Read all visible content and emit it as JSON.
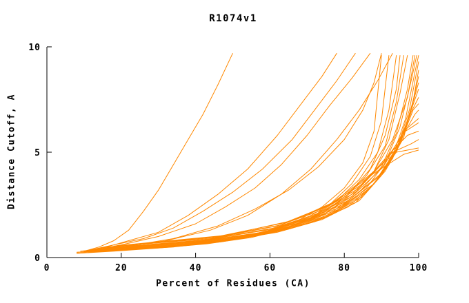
{
  "page": {
    "background": "#ffffff"
  },
  "chart_data": {
    "type": "line",
    "title": "R1074v1",
    "xlabel": "Percent of Residues (CA)",
    "ylabel": "Distance Cutoff, A",
    "xlim": [
      0,
      100
    ],
    "ylim": [
      0,
      10
    ],
    "x_ticks": [
      0,
      20,
      40,
      60,
      80,
      100
    ],
    "y_ticks": [
      0,
      5,
      10
    ],
    "grid": false,
    "legend": "none",
    "line_color": "#ff8800",
    "axis_color": "#000000",
    "series": [
      [
        [
          10,
          0.3
        ],
        [
          14,
          0.5
        ],
        [
          18,
          0.8
        ],
        [
          22,
          1.3
        ],
        [
          26,
          2.2
        ],
        [
          30,
          3.2
        ],
        [
          34,
          4.4
        ],
        [
          38,
          5.6
        ],
        [
          42,
          6.8
        ],
        [
          46,
          8.2
        ],
        [
          50,
          9.7
        ]
      ],
      [
        [
          10,
          0.3
        ],
        [
          16,
          0.5
        ],
        [
          22,
          0.8
        ],
        [
          30,
          1.2
        ],
        [
          38,
          2.0
        ],
        [
          46,
          3.0
        ],
        [
          54,
          4.2
        ],
        [
          62,
          5.8
        ],
        [
          68,
          7.2
        ],
        [
          74,
          8.6
        ],
        [
          78,
          9.7
        ]
      ],
      [
        [
          10,
          0.3
        ],
        [
          18,
          0.6
        ],
        [
          26,
          0.9
        ],
        [
          34,
          1.4
        ],
        [
          42,
          2.2
        ],
        [
          50,
          3.1
        ],
        [
          58,
          4.2
        ],
        [
          66,
          5.6
        ],
        [
          72,
          7.0
        ],
        [
          78,
          8.4
        ],
        [
          83,
          9.7
        ]
      ],
      [
        [
          11,
          0.3
        ],
        [
          20,
          0.6
        ],
        [
          30,
          1.0
        ],
        [
          40,
          1.6
        ],
        [
          48,
          2.4
        ],
        [
          56,
          3.3
        ],
        [
          63,
          4.4
        ],
        [
          70,
          5.8
        ],
        [
          76,
          7.2
        ],
        [
          82,
          8.5
        ],
        [
          87,
          9.7
        ]
      ],
      [
        [
          10,
          0.3
        ],
        [
          22,
          0.55
        ],
        [
          34,
          0.9
        ],
        [
          46,
          1.5
        ],
        [
          56,
          2.3
        ],
        [
          65,
          3.2
        ],
        [
          73,
          4.3
        ],
        [
          80,
          5.6
        ],
        [
          85,
          7.0
        ],
        [
          88,
          8.3
        ],
        [
          90,
          9.7
        ]
      ],
      [
        [
          9,
          0.3
        ],
        [
          20,
          0.5
        ],
        [
          32,
          0.8
        ],
        [
          44,
          1.3
        ],
        [
          54,
          2.0
        ],
        [
          63,
          3.0
        ],
        [
          71,
          4.2
        ],
        [
          78,
          5.6
        ],
        [
          84,
          7.0
        ],
        [
          89,
          8.4
        ],
        [
          93,
          9.7
        ]
      ],
      [
        [
          8,
          0.2
        ],
        [
          20,
          0.35
        ],
        [
          34,
          0.5
        ],
        [
          47,
          0.75
        ],
        [
          57,
          1.05
        ],
        [
          66,
          1.5
        ],
        [
          74,
          2.1
        ],
        [
          81,
          3.0
        ],
        [
          87,
          4.2
        ],
        [
          91,
          5.8
        ],
        [
          94,
          8.0
        ],
        [
          95,
          9.6
        ]
      ],
      [
        [
          8,
          0.2
        ],
        [
          18,
          0.3
        ],
        [
          30,
          0.45
        ],
        [
          43,
          0.65
        ],
        [
          55,
          0.95
        ],
        [
          65,
          1.4
        ],
        [
          74,
          2.0
        ],
        [
          82,
          2.9
        ],
        [
          88,
          4.1
        ],
        [
          93,
          5.6
        ],
        [
          97,
          7.6
        ],
        [
          99,
          9.6
        ]
      ],
      [
        [
          8,
          0.25
        ],
        [
          22,
          0.4
        ],
        [
          36,
          0.6
        ],
        [
          48,
          0.85
        ],
        [
          58,
          1.2
        ],
        [
          67,
          1.7
        ],
        [
          74,
          2.4
        ],
        [
          80,
          3.3
        ],
        [
          85,
          4.5
        ],
        [
          88,
          6.0
        ],
        [
          90,
          9.6
        ]
      ],
      [
        [
          8,
          0.25
        ],
        [
          24,
          0.4
        ],
        [
          38,
          0.6
        ],
        [
          50,
          0.9
        ],
        [
          60,
          1.3
        ],
        [
          69,
          1.8
        ],
        [
          76,
          2.5
        ],
        [
          82,
          3.5
        ],
        [
          87,
          4.8
        ],
        [
          90,
          6.5
        ],
        [
          92,
          9.6
        ]
      ],
      [
        [
          9,
          0.25
        ],
        [
          25,
          0.4
        ],
        [
          40,
          0.65
        ],
        [
          52,
          0.95
        ],
        [
          62,
          1.35
        ],
        [
          71,
          1.9
        ],
        [
          78,
          2.7
        ],
        [
          84,
          3.7
        ],
        [
          89,
          5.0
        ],
        [
          92,
          7.0
        ],
        [
          94,
          9.6
        ]
      ],
      [
        [
          9,
          0.3
        ],
        [
          26,
          0.45
        ],
        [
          42,
          0.7
        ],
        [
          54,
          1.0
        ],
        [
          64,
          1.4
        ],
        [
          73,
          2.0
        ],
        [
          80,
          2.8
        ],
        [
          86,
          3.9
        ],
        [
          91,
          5.3
        ],
        [
          94,
          7.4
        ],
        [
          96,
          9.6
        ]
      ],
      [
        [
          10,
          0.3
        ],
        [
          28,
          0.45
        ],
        [
          44,
          0.7
        ],
        [
          56,
          1.05
        ],
        [
          66,
          1.5
        ],
        [
          75,
          2.1
        ],
        [
          82,
          3.0
        ],
        [
          88,
          4.1
        ],
        [
          92,
          5.6
        ],
        [
          95,
          7.8
        ],
        [
          97,
          9.6
        ]
      ],
      [
        [
          10,
          0.3
        ],
        [
          30,
          0.5
        ],
        [
          46,
          0.75
        ],
        [
          58,
          1.1
        ],
        [
          68,
          1.55
        ],
        [
          77,
          2.2
        ],
        [
          84,
          3.1
        ],
        [
          90,
          4.3
        ],
        [
          94,
          5.9
        ],
        [
          97,
          8.0
        ],
        [
          98.5,
          9.6
        ]
      ],
      [
        [
          10,
          0.3
        ],
        [
          32,
          0.5
        ],
        [
          48,
          0.8
        ],
        [
          60,
          1.15
        ],
        [
          70,
          1.6
        ],
        [
          79,
          2.3
        ],
        [
          86,
          3.3
        ],
        [
          91,
          4.5
        ],
        [
          95,
          6.2
        ],
        [
          98,
          8.4
        ],
        [
          99.5,
          9.6
        ]
      ],
      [
        [
          11,
          0.3
        ],
        [
          33,
          0.55
        ],
        [
          50,
          0.85
        ],
        [
          62,
          1.2
        ],
        [
          72,
          1.7
        ],
        [
          81,
          2.4
        ],
        [
          88,
          3.5
        ],
        [
          93,
          4.8
        ],
        [
          96.5,
          6.6
        ],
        [
          99,
          8.8
        ],
        [
          100,
          9.6
        ]
      ],
      [
        [
          11,
          0.3
        ],
        [
          34,
          0.55
        ],
        [
          52,
          0.9
        ],
        [
          64,
          1.3
        ],
        [
          74,
          1.8
        ],
        [
          83,
          2.6
        ],
        [
          89,
          3.7
        ],
        [
          94,
          5.1
        ],
        [
          97.5,
          7.0
        ],
        [
          100,
          9.3
        ]
      ],
      [
        [
          12,
          0.3
        ],
        [
          35,
          0.6
        ],
        [
          53,
          0.95
        ],
        [
          65,
          1.35
        ],
        [
          75,
          1.9
        ],
        [
          84,
          2.7
        ],
        [
          90,
          3.9
        ],
        [
          95,
          5.4
        ],
        [
          98.5,
          7.4
        ],
        [
          100,
          8.9
        ]
      ],
      [
        [
          12,
          0.35
        ],
        [
          36,
          0.6
        ],
        [
          54,
          1.0
        ],
        [
          66,
          1.4
        ],
        [
          76,
          2.0
        ],
        [
          85,
          2.9
        ],
        [
          91,
          4.1
        ],
        [
          96,
          5.7
        ],
        [
          99,
          7.8
        ],
        [
          100,
          8.6
        ]
      ],
      [
        [
          13,
          0.35
        ],
        [
          37,
          0.65
        ],
        [
          55,
          1.05
        ],
        [
          67,
          1.5
        ],
        [
          77,
          2.1
        ],
        [
          86,
          3.1
        ],
        [
          92,
          4.4
        ],
        [
          96.5,
          6.1
        ],
        [
          99.5,
          8.0
        ],
        [
          100,
          8.3
        ]
      ],
      [
        [
          13,
          0.35
        ],
        [
          38,
          0.7
        ],
        [
          56,
          1.1
        ],
        [
          68,
          1.6
        ],
        [
          78,
          2.25
        ],
        [
          87,
          3.3
        ],
        [
          93,
          4.7
        ],
        [
          97,
          6.5
        ],
        [
          100,
          8.0
        ]
      ],
      [
        [
          14,
          0.4
        ],
        [
          39,
          0.7
        ],
        [
          57,
          1.15
        ],
        [
          69,
          1.7
        ],
        [
          79,
          2.4
        ],
        [
          88,
          3.5
        ],
        [
          94,
          5.0
        ],
        [
          98,
          6.9
        ],
        [
          100,
          7.6
        ]
      ],
      [
        [
          14,
          0.4
        ],
        [
          40,
          0.75
        ],
        [
          58,
          1.2
        ],
        [
          70,
          1.8
        ],
        [
          80,
          2.55
        ],
        [
          89,
          3.8
        ],
        [
          95,
          5.4
        ],
        [
          98.5,
          7.0
        ],
        [
          100,
          7.3
        ]
      ],
      [
        [
          15,
          0.4
        ],
        [
          41,
          0.8
        ],
        [
          59,
          1.3
        ],
        [
          71,
          1.9
        ],
        [
          81,
          2.7
        ],
        [
          90,
          4.0
        ],
        [
          95.5,
          5.7
        ],
        [
          99,
          6.8
        ],
        [
          100,
          7.0
        ]
      ],
      [
        [
          15,
          0.45
        ],
        [
          42,
          0.8
        ],
        [
          60,
          1.35
        ],
        [
          72,
          2.0
        ],
        [
          82,
          2.9
        ],
        [
          90.5,
          4.3
        ],
        [
          96,
          6.0
        ],
        [
          100,
          6.6
        ]
      ],
      [
        [
          16,
          0.45
        ],
        [
          43,
          0.85
        ],
        [
          61,
          1.4
        ],
        [
          73,
          2.1
        ],
        [
          83,
          3.1
        ],
        [
          91,
          4.6
        ],
        [
          96.5,
          6.0
        ],
        [
          100,
          6.4
        ]
      ],
      [
        [
          16,
          0.5
        ],
        [
          44,
          0.9
        ],
        [
          62,
          1.5
        ],
        [
          74,
          2.25
        ],
        [
          84,
          3.3
        ],
        [
          92,
          4.9
        ],
        [
          97,
          5.8
        ],
        [
          100,
          6.0
        ]
      ],
      [
        [
          17,
          0.5
        ],
        [
          45,
          0.95
        ],
        [
          63,
          1.55
        ],
        [
          75,
          2.4
        ],
        [
          85,
          3.5
        ],
        [
          93,
          5.0
        ],
        [
          98,
          5.4
        ],
        [
          100,
          5.6
        ]
      ],
      [
        [
          17,
          0.5
        ],
        [
          46,
          1.0
        ],
        [
          64,
          1.65
        ],
        [
          76,
          2.5
        ],
        [
          86,
          3.8
        ],
        [
          94,
          5.0
        ],
        [
          100,
          5.2
        ]
      ],
      [
        [
          18,
          0.55
        ],
        [
          48,
          1.05
        ],
        [
          66,
          1.75
        ],
        [
          78,
          2.7
        ],
        [
          88,
          4.0
        ],
        [
          96,
          4.9
        ],
        [
          100,
          5.1
        ]
      ]
    ]
  }
}
